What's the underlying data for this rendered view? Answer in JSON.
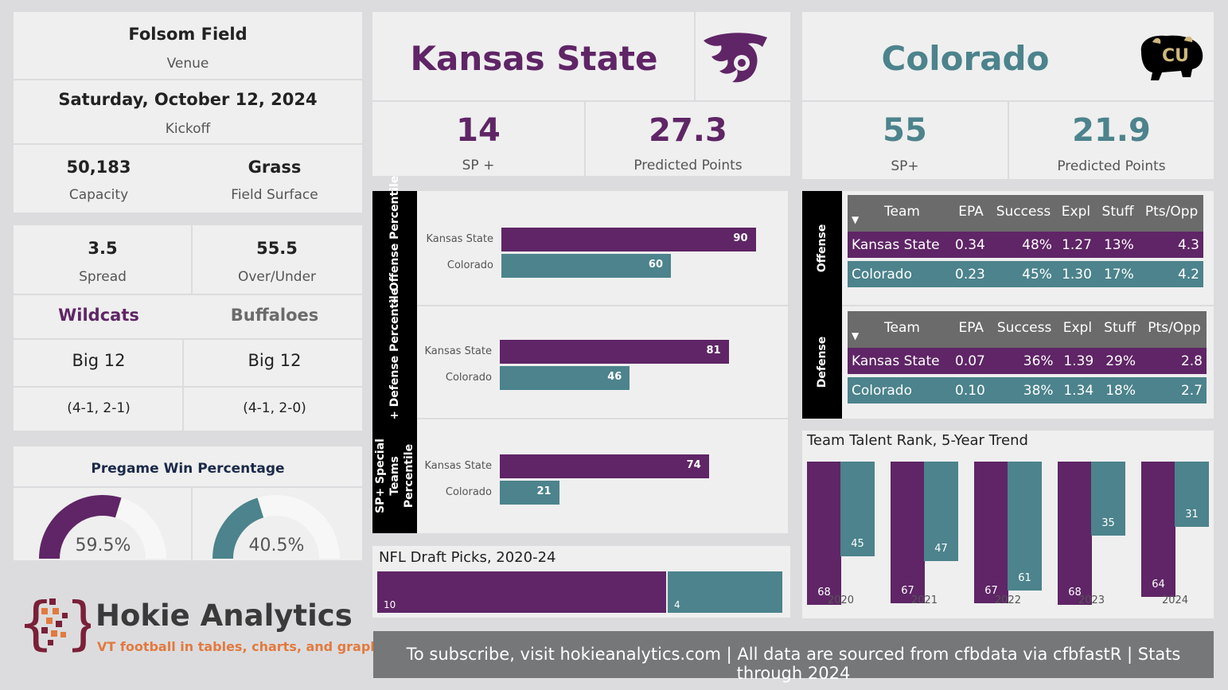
{
  "venue": {
    "name": "Folsom Field",
    "venue_label": "Venue",
    "date": "Saturday, October 12, 2024",
    "kickoff_label": "Kickoff",
    "capacity": "50,183",
    "capacity_label": "Capacity",
    "surface": "Grass",
    "surface_label": "Field Surface"
  },
  "betting": {
    "spread": "3.5",
    "spread_label": "Spread",
    "ou": "55.5",
    "ou_label": "Over/Under"
  },
  "teams_info": {
    "ksu": {
      "mascot": "Wildcats",
      "conf": "Big 12",
      "record": "(4-1, 2-1)"
    },
    "cu": {
      "mascot": "Buffaloes",
      "conf": "Big 12",
      "record": "(4-1, 2-0)"
    }
  },
  "win_pct": {
    "title": "Pregame Win Percentage",
    "ksu_value": 59.5,
    "ksu_label": "59.5%",
    "cu_value": 40.5,
    "cu_label": "40.5%"
  },
  "brand": {
    "name": "Hokie Analytics",
    "tagline": "VT football in tables, charts, and graphs"
  },
  "ksu_header": {
    "name": "Kansas State",
    "sp": "14",
    "sp_label": "SP +",
    "pred": "27.3",
    "pred_label": "Predicted Points"
  },
  "cu_header": {
    "name": "Colorado",
    "sp": "55",
    "sp_label": "SP+",
    "pred": "21.9",
    "pred_label": "Predicted Points"
  },
  "percentiles": {
    "labels": [
      "SP+ Offense Percentile",
      "SP+ Defense Percentile",
      "SP+ Special Teams Percentile"
    ],
    "teams": [
      "Kansas State",
      "Colorado"
    ]
  },
  "table": {
    "headers": [
      "Team",
      "EPA",
      "Success",
      "Expl",
      "Stuff",
      "Pts/Opp"
    ],
    "offense_label": "Offense",
    "defense_label": "Defense",
    "offense": [
      [
        "Kansas State",
        "0.34",
        "48%",
        "1.27",
        "13%",
        "4.3"
      ],
      [
        "Colorado",
        "0.23",
        "45%",
        "1.30",
        "17%",
        "4.2"
      ]
    ],
    "defense": [
      [
        "Kansas State",
        "0.07",
        "36%",
        "1.39",
        "29%",
        "2.8"
      ],
      [
        "Colorado",
        "0.10",
        "38%",
        "1.34",
        "18%",
        "2.7"
      ]
    ]
  },
  "talent_title": "Team Talent Rank, 5-Year Trend",
  "draft_title": "NFL Draft Picks, 2020-24",
  "footer": "To subscribe, visit hokieanalytics.com | All data are sourced from cfbdata via cfbfastR | Stats through 2024",
  "colors": {
    "ksu": "#5f2566",
    "cu": "#4c838c"
  },
  "chart_data": [
    {
      "type": "bar",
      "title": "SP+ Offense Percentile",
      "categories": [
        "Kansas State",
        "Colorado"
      ],
      "values": [
        90,
        60
      ],
      "ylim": [
        0,
        100
      ]
    },
    {
      "type": "bar",
      "title": "SP+ Defense Percentile",
      "categories": [
        "Kansas State",
        "Colorado"
      ],
      "values": [
        81,
        46
      ],
      "ylim": [
        0,
        100
      ]
    },
    {
      "type": "bar",
      "title": "SP+ Special Teams Percentile",
      "categories": [
        "Kansas State",
        "Colorado"
      ],
      "values": [
        74,
        21
      ],
      "ylim": [
        0,
        100
      ]
    },
    {
      "type": "bar",
      "title": "Team Talent Rank, 5-Year Trend",
      "categories": [
        "2020",
        "2021",
        "2022",
        "2023",
        "2024"
      ],
      "series": [
        {
          "name": "Kansas State",
          "values": [
            68,
            67,
            67,
            68,
            64
          ]
        },
        {
          "name": "Colorado",
          "values": [
            45,
            47,
            61,
            35,
            31
          ]
        }
      ],
      "ylim": [
        0,
        100
      ]
    },
    {
      "type": "bar",
      "title": "NFL Draft Picks, 2020-24",
      "categories": [
        "Kansas State",
        "Colorado"
      ],
      "values": [
        10,
        4
      ]
    }
  ]
}
